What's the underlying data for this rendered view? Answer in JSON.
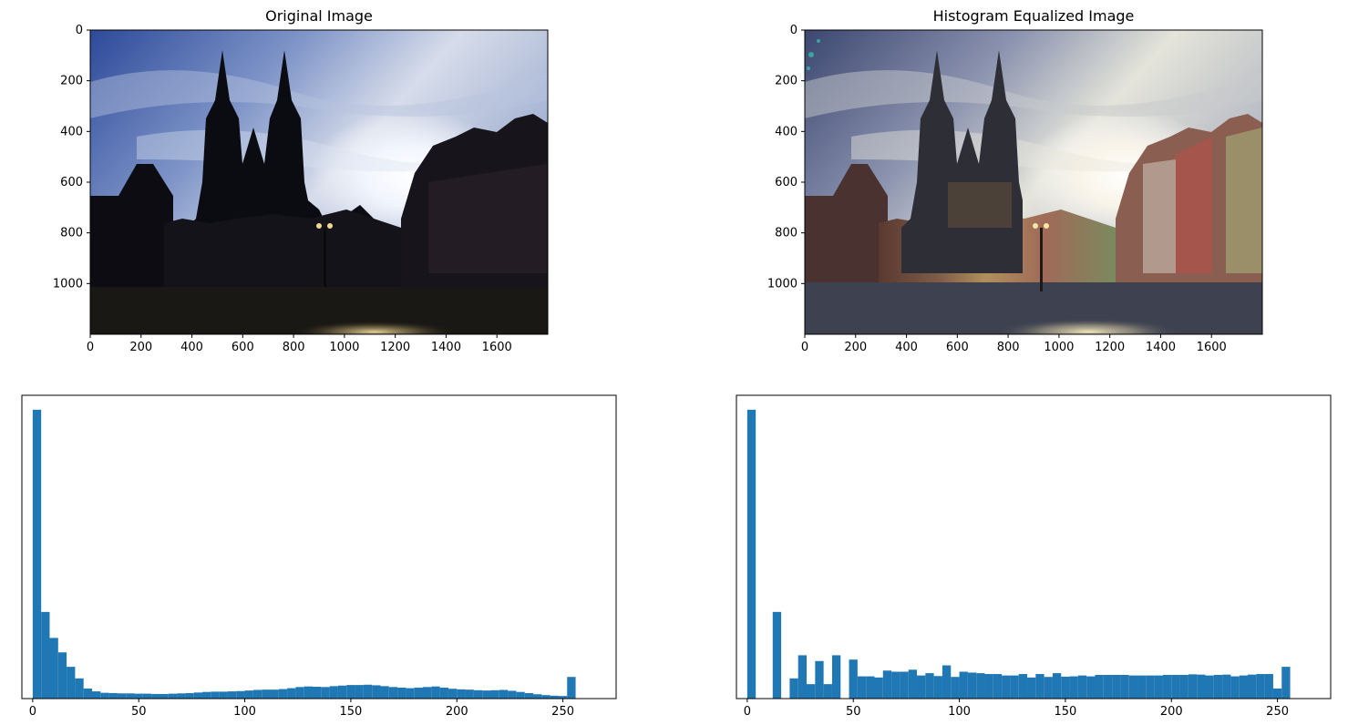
{
  "figure": {
    "panels": [
      {
        "id": "original-image",
        "title": "Original Image",
        "type": "image",
        "x_ticks": [
          0,
          200,
          400,
          600,
          800,
          1000,
          1200,
          1400,
          1600
        ],
        "y_ticks": [
          0,
          200,
          400,
          600,
          800,
          1000
        ],
        "xlim": [
          0,
          1800
        ],
        "ylim": [
          1200,
          0
        ],
        "image_palette": {
          "sky_top": "#3b5aa8",
          "sky_light": "#c9d3e6",
          "sun": "#ffffff",
          "silhouette": "#0b0b12",
          "ground": "#1a1814",
          "light_reflection": "#d7c391"
        }
      },
      {
        "id": "equalized-image",
        "title": "Histogram Equalized Image",
        "type": "image",
        "x_ticks": [
          0,
          200,
          400,
          600,
          800,
          1000,
          1200,
          1400,
          1600
        ],
        "y_ticks": [
          0,
          200,
          400,
          600,
          800,
          1000
        ],
        "xlim": [
          0,
          1800
        ],
        "ylim": [
          1200,
          0
        ],
        "image_palette": {
          "sky_top": "#3f4a70",
          "sky_light": "#d9dcd4",
          "sun": "#ffffff",
          "silhouette": "#2a2a33",
          "buildings": "#8a6e50",
          "ground": "#3e4250",
          "light_reflection": "#e0d7b4"
        }
      }
    ]
  },
  "chart_data": [
    {
      "type": "bar",
      "title": "",
      "xlabel": "",
      "ylabel": "",
      "bins": 64,
      "bin_width": 4,
      "x_start": 0,
      "x_ticks": [
        0,
        50,
        100,
        150,
        200,
        250
      ],
      "xlim": [
        -5.1,
        275.1
      ],
      "ylim": [
        0,
        1.05
      ],
      "y_ticks_visible": false,
      "color": "#1f77b4",
      "values": [
        1.0,
        0.3,
        0.21,
        0.16,
        0.11,
        0.07,
        0.035,
        0.025,
        0.02,
        0.019,
        0.018,
        0.018,
        0.017,
        0.017,
        0.016,
        0.016,
        0.017,
        0.018,
        0.019,
        0.021,
        0.023,
        0.024,
        0.024,
        0.025,
        0.026,
        0.028,
        0.03,
        0.031,
        0.031,
        0.033,
        0.036,
        0.04,
        0.042,
        0.041,
        0.04,
        0.043,
        0.045,
        0.047,
        0.047,
        0.048,
        0.046,
        0.043,
        0.04,
        0.038,
        0.036,
        0.038,
        0.04,
        0.042,
        0.038,
        0.034,
        0.032,
        0.031,
        0.029,
        0.028,
        0.029,
        0.03,
        0.027,
        0.023,
        0.019,
        0.015,
        0.012,
        0.01,
        0.009,
        0.075
      ]
    },
    {
      "type": "bar",
      "title": "",
      "xlabel": "",
      "ylabel": "",
      "bins": 64,
      "bin_width": 4,
      "x_start": 0,
      "x_ticks": [
        0,
        50,
        100,
        150,
        200,
        250
      ],
      "xlim": [
        -5.1,
        275.1
      ],
      "ylim": [
        0,
        1.05
      ],
      "y_ticks_visible": false,
      "color": "#1f77b4",
      "values": [
        1.0,
        0,
        0,
        0.3,
        0,
        0.07,
        0.15,
        0.05,
        0.13,
        0.05,
        0.15,
        0,
        0.135,
        0.077,
        0.077,
        0.073,
        0.097,
        0.093,
        0.093,
        0.1,
        0.08,
        0.088,
        0.078,
        0.115,
        0.075,
        0.093,
        0.09,
        0.088,
        0.085,
        0.085,
        0.08,
        0.08,
        0.085,
        0.073,
        0.085,
        0.075,
        0.088,
        0.076,
        0.077,
        0.08,
        0.077,
        0.082,
        0.082,
        0.082,
        0.082,
        0.08,
        0.08,
        0.08,
        0.08,
        0.082,
        0.082,
        0.082,
        0.084,
        0.083,
        0.08,
        0.082,
        0.083,
        0.077,
        0.08,
        0.083,
        0.085,
        0.085,
        0.035,
        0.11
      ]
    }
  ]
}
